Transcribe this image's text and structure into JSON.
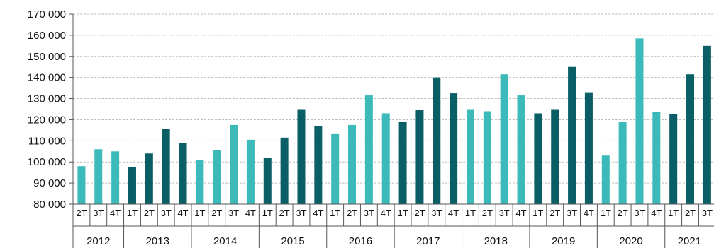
{
  "chart_data": {
    "type": "bar",
    "title": "",
    "xlabel": "",
    "ylabel": "",
    "ylim": [
      80000,
      170000
    ],
    "y_ticks": [
      "80 000",
      "90 000",
      "100 000",
      "110 000",
      "120 000",
      "130 000",
      "140 000",
      "150 000",
      "160 000",
      "170 000"
    ],
    "y_tick_values": [
      80000,
      90000,
      100000,
      110000,
      120000,
      130000,
      140000,
      150000,
      160000,
      170000
    ],
    "grid": "horizontal dashed",
    "colors": {
      "odd_year": "#3bbab9",
      "even_year": "#0a5e66",
      "grid": "#bdbdbd",
      "axis": "#555555"
    },
    "categories": [
      "2T",
      "3T",
      "4T",
      "1T",
      "2T",
      "3T",
      "4T",
      "1T",
      "2T",
      "3T",
      "4T",
      "1T",
      "2T",
      "3T",
      "4T",
      "1T",
      "2T",
      "3T",
      "4T",
      "1T",
      "2T",
      "3T",
      "4T",
      "1T",
      "2T",
      "3T",
      "4T",
      "1T",
      "2T",
      "3T",
      "4T",
      "1T",
      "2T",
      "3T",
      "4T",
      "1T",
      "2T",
      "3T"
    ],
    "years": [
      {
        "label": "2012",
        "quarters": 3
      },
      {
        "label": "2013",
        "quarters": 4
      },
      {
        "label": "2014",
        "quarters": 4
      },
      {
        "label": "2015",
        "quarters": 4
      },
      {
        "label": "2016",
        "quarters": 4
      },
      {
        "label": "2017",
        "quarters": 4
      },
      {
        "label": "2018",
        "quarters": 4
      },
      {
        "label": "2019",
        "quarters": 4
      },
      {
        "label": "2020",
        "quarters": 4
      },
      {
        "label": "2021",
        "quarters": 3
      }
    ],
    "values": [
      98000,
      106000,
      105000,
      97500,
      104000,
      115500,
      109000,
      101000,
      105500,
      117500,
      110500,
      102000,
      111500,
      125000,
      117000,
      113500,
      117500,
      131500,
      123000,
      119000,
      124500,
      140000,
      132500,
      125000,
      124000,
      141500,
      131500,
      123000,
      125000,
      145000,
      133000,
      103000,
      119000,
      158500,
      123500,
      122500,
      141500,
      155000
    ]
  }
}
